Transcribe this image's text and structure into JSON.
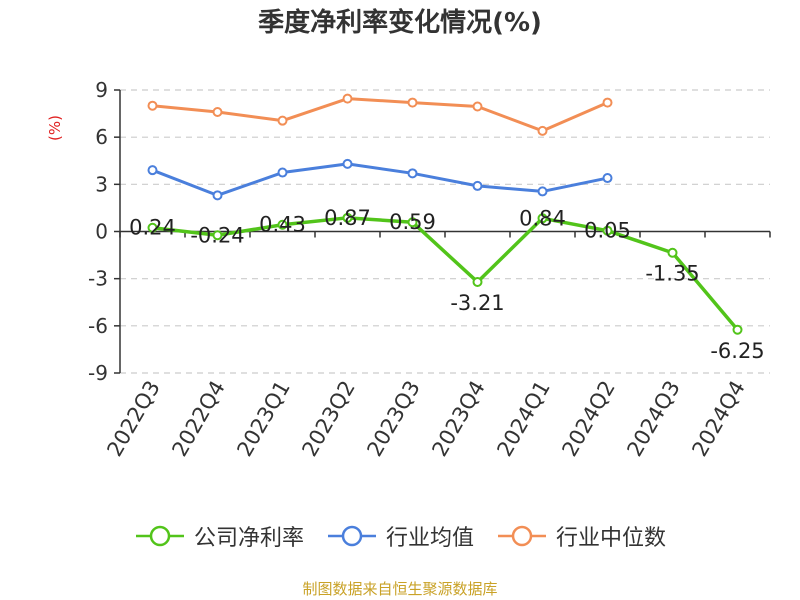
{
  "chart_data": {
    "type": "line",
    "title": "季度净利率变化情况(%)",
    "ylabel": "(%)",
    "xlabel": "",
    "categories": [
      "2022Q3",
      "2022Q4",
      "2023Q1",
      "2023Q2",
      "2023Q3",
      "2023Q4",
      "2024Q1",
      "2024Q2",
      "2024Q3",
      "2024Q4"
    ],
    "ylim": [
      -9,
      9
    ],
    "yticks": [
      9,
      6,
      3,
      0,
      -3,
      -6,
      -9
    ],
    "grid": true,
    "legend_position": "bottom",
    "series": [
      {
        "name": "公司净利率",
        "color": "#52c41a",
        "values": [
          0.24,
          -0.24,
          0.43,
          0.87,
          0.59,
          -3.21,
          0.84,
          0.05,
          -1.35,
          -6.25
        ],
        "labels": [
          "0.24",
          "-0.24",
          "0.43",
          "0.87",
          "0.59",
          "-3.21",
          "0.84",
          "0.05",
          "-1.35",
          "-6.25"
        ]
      },
      {
        "name": "行业均值",
        "color": "#4a7fdc",
        "values": [
          3.9,
          2.3,
          3.75,
          4.3,
          3.7,
          2.9,
          2.55,
          3.4,
          null,
          null
        ]
      },
      {
        "name": "行业中位数",
        "color": "#f28e55",
        "values": [
          8.0,
          7.6,
          7.05,
          8.45,
          8.2,
          7.95,
          6.4,
          8.2,
          null,
          null
        ]
      }
    ]
  },
  "source_note": "制图数据来自恒生聚源数据库"
}
